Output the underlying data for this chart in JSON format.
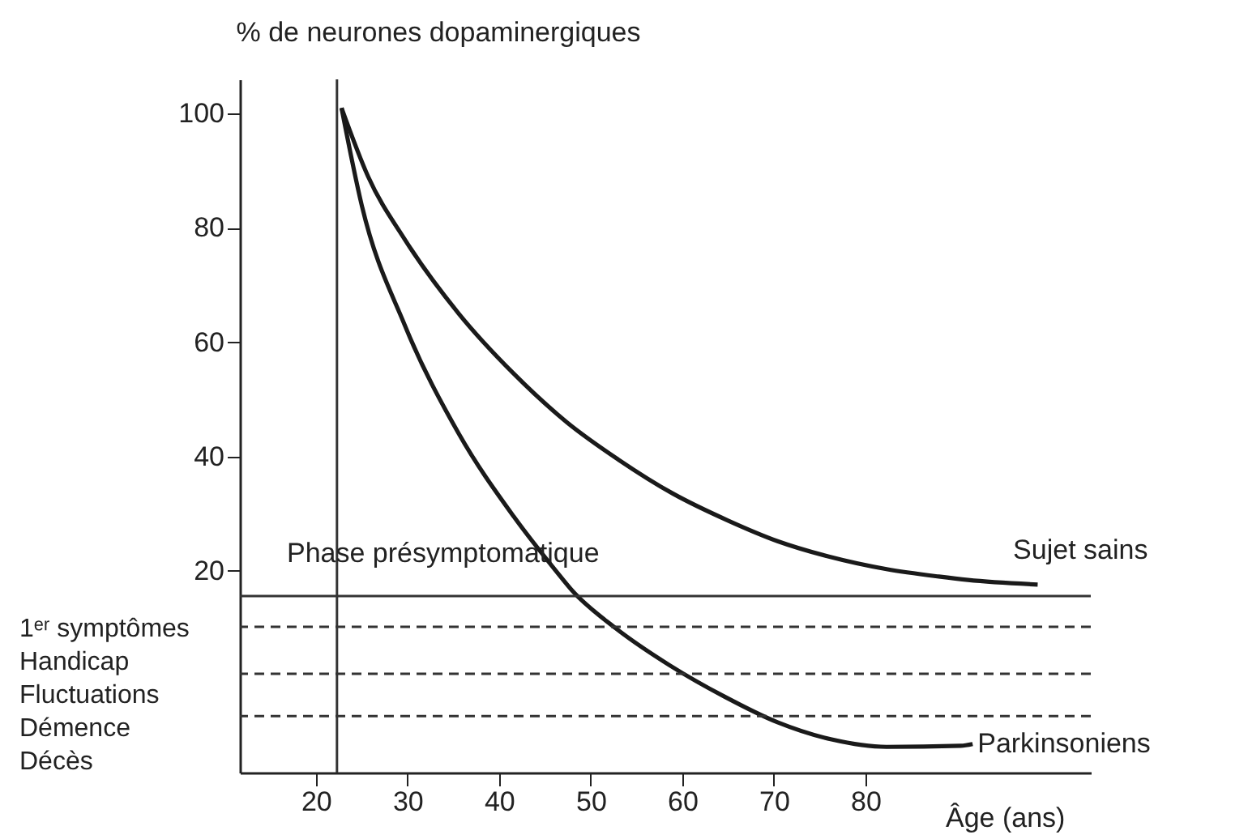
{
  "chart_data": {
    "type": "line",
    "ylabel": "% de neurones dopaminergiques",
    "xlabel": "Âge (ans)",
    "xlim": [
      11.7,
      104.6
    ],
    "ylim": [
      -15.3,
      106
    ],
    "xticks": [
      20,
      30,
      40,
      50,
      60,
      70,
      80
    ],
    "yticks": [
      20,
      40,
      60,
      80,
      100
    ],
    "grid": false,
    "series": [
      {
        "name": "Sujet sains",
        "color": "#1a1a1a",
        "x": [
          22.8,
          25.7,
          29.7,
          35.6,
          41.6,
          47.4,
          53,
          59,
          65,
          70.4,
          76,
          82.3,
          88,
          91.2,
          98.8
        ],
        "values": [
          101,
          89,
          78,
          65,
          54.5,
          46,
          39.5,
          33.5,
          28.8,
          25.2,
          22.5,
          20.3,
          19,
          18.4,
          17.6
        ]
      },
      {
        "name": "Parkinsoniens",
        "color": "#1a1a1a",
        "x": [
          22.8,
          25,
          29.7,
          35.6,
          41.6,
          46.2,
          48,
          52.7,
          58.6,
          64.6,
          70.4,
          76.3,
          82.3,
          90.4,
          91.7
        ],
        "values": [
          101,
          84,
          63,
          44,
          29.5,
          20,
          16.5,
          10,
          3.5,
          -2,
          -6.5,
          -9.5,
          -10.8,
          -10.6,
          -10.3
        ]
      }
    ],
    "ref_lines": [
      {
        "axis": "x",
        "value": 22.3,
        "color": "#333333",
        "line_style": "solid"
      },
      {
        "axis": "y",
        "value": 15.6,
        "color": "#333333",
        "line_style": "solid"
      },
      {
        "axis": "y",
        "value": 10.2,
        "color": "#333333",
        "line_style": "dashed"
      },
      {
        "axis": "y",
        "value": 2,
        "color": "#333333",
        "line_style": "dashed"
      },
      {
        "axis": "y",
        "value": -5.4,
        "color": "#333333",
        "line_style": "dashed"
      }
    ],
    "annotations": [
      "Phase présymptomatique",
      "1ᵉʳ symptômes",
      "Handicap",
      "Fluctuations",
      "Démence",
      "Décès"
    ]
  }
}
